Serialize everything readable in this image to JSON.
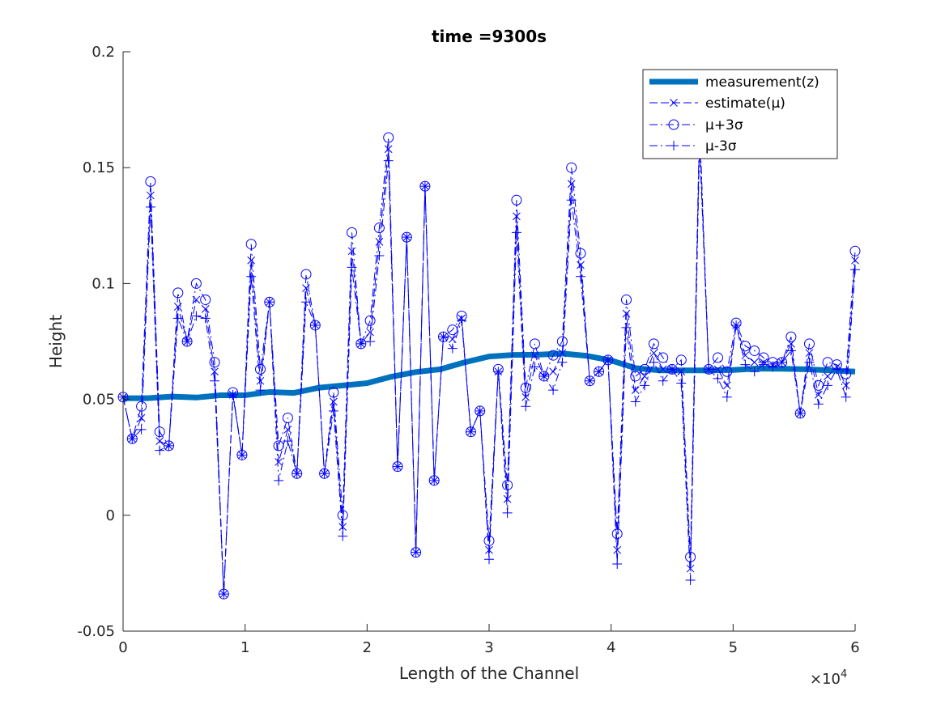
{
  "chart_data": {
    "type": "line",
    "title": "time =9300s",
    "xlabel": "Length of the Channel",
    "ylabel": "Height",
    "x_exponent_label": "×10",
    "x_exponent_power": "4",
    "xlim": [
      0,
      60000
    ],
    "ylim": [
      -0.05,
      0.2
    ],
    "xticks": [
      0,
      10000,
      20000,
      30000,
      40000,
      50000,
      60000
    ],
    "xtick_labels": [
      "0",
      "1",
      "2",
      "3",
      "4",
      "5",
      "6"
    ],
    "yticks": [
      -0.05,
      0,
      0.05,
      0.1,
      0.15,
      0.2
    ],
    "ytick_labels": [
      "-0.05",
      "0",
      "0.05",
      "0.1",
      "0.15",
      "0.2"
    ],
    "grid": false,
    "legend_position": "top-right",
    "legend": [
      "measurement(z)",
      "estimate(μ)",
      "μ+3σ",
      "μ-3σ"
    ],
    "colors": {
      "measurement": "#0072BD",
      "estimate": "#0000FF",
      "axis": "#262626"
    },
    "measurement": {
      "name": "measurement(z)",
      "x": [
        0,
        2000,
        4000,
        6000,
        8000,
        10000,
        12000,
        14000,
        16000,
        18000,
        20000,
        22000,
        24000,
        26000,
        28000,
        30000,
        32000,
        34000,
        36000,
        38000,
        40000,
        42000,
        44000,
        46000,
        48000,
        50000,
        52000,
        54000,
        56000,
        58000,
        60000
      ],
      "y": [
        0.0505,
        0.0505,
        0.0512,
        0.0508,
        0.0518,
        0.0518,
        0.0532,
        0.0528,
        0.055,
        0.056,
        0.057,
        0.0598,
        0.0618,
        0.063,
        0.066,
        0.0685,
        0.0692,
        0.0693,
        0.0698,
        0.0688,
        0.0668,
        0.0635,
        0.0625,
        0.0625,
        0.0625,
        0.0627,
        0.0633,
        0.0632,
        0.063,
        0.0625,
        0.062
      ]
    },
    "estimate": {
      "name": "estimate(μ)",
      "x": [
        0,
        750,
        1500,
        2250,
        3000,
        3750,
        4500,
        5250,
        6000,
        6750,
        7500,
        8250,
        9000,
        9750,
        10500,
        11250,
        12000,
        12750,
        13500,
        14250,
        15000,
        15750,
        16500,
        17250,
        18000,
        18750,
        19500,
        20250,
        21000,
        21750,
        22500,
        23250,
        24000,
        24750,
        25500,
        26250,
        27000,
        27750,
        28500,
        29250,
        30000,
        30750,
        31500,
        32250,
        33000,
        33750,
        34500,
        35250,
        36000,
        36750,
        37500,
        38250,
        39000,
        39750,
        40500,
        41250,
        42000,
        42750,
        43500,
        44250,
        45000,
        45750,
        46500,
        47250,
        48000,
        48750,
        49500,
        50250,
        51000,
        51750,
        52500,
        53250,
        54000,
        54750,
        55500,
        56250,
        57000,
        57750,
        58500,
        59250,
        60000
      ],
      "y": [
        0.051,
        0.033,
        0.042,
        0.138,
        0.032,
        0.03,
        0.09,
        0.075,
        0.093,
        0.089,
        0.062,
        -0.034,
        0.052,
        0.026,
        0.11,
        0.058,
        0.092,
        0.023,
        0.037,
        0.018,
        0.098,
        0.082,
        0.018,
        0.049,
        -0.005,
        0.114,
        0.074,
        0.079,
        0.118,
        0.158,
        0.021,
        0.12,
        -0.016,
        0.142,
        0.015,
        0.077,
        0.076,
        0.085,
        0.036,
        0.045,
        -0.015,
        0.062,
        0.007,
        0.129,
        0.051,
        0.069,
        0.06,
        0.062,
        0.07,
        0.143,
        0.108,
        0.058,
        0.062,
        0.067,
        -0.015,
        0.087,
        0.054,
        0.06,
        0.07,
        0.063,
        0.063,
        0.062,
        -0.023,
        0.165,
        0.063,
        0.063,
        0.056,
        0.082,
        0.069,
        0.066,
        0.066,
        0.065,
        0.066,
        0.074,
        0.044,
        0.07,
        0.052,
        0.06,
        0.064,
        0.056,
        0.11
      ]
    },
    "upper": {
      "name": "μ+3σ",
      "y": [
        0.051,
        0.033,
        0.047,
        0.144,
        0.036,
        0.03,
        0.096,
        0.075,
        0.1,
        0.093,
        0.066,
        -0.034,
        0.053,
        0.026,
        0.117,
        0.063,
        0.092,
        0.03,
        0.042,
        0.018,
        0.104,
        0.082,
        0.018,
        0.053,
        0.0,
        0.122,
        0.074,
        0.084,
        0.124,
        0.163,
        0.021,
        0.12,
        -0.016,
        0.142,
        0.015,
        0.077,
        0.08,
        0.086,
        0.036,
        0.045,
        -0.011,
        0.063,
        0.013,
        0.136,
        0.055,
        0.074,
        0.06,
        0.069,
        0.075,
        0.15,
        0.113,
        0.058,
        0.062,
        0.067,
        -0.008,
        0.093,
        0.06,
        0.063,
        0.074,
        0.068,
        0.063,
        0.067,
        -0.018,
        0.17,
        0.063,
        0.068,
        0.062,
        0.083,
        0.073,
        0.071,
        0.068,
        0.066,
        0.066,
        0.077,
        0.044,
        0.074,
        0.056,
        0.066,
        0.065,
        0.061,
        0.114
      ]
    },
    "lower": {
      "name": "μ-3σ",
      "y": [
        0.051,
        0.033,
        0.037,
        0.133,
        0.028,
        0.03,
        0.085,
        0.075,
        0.086,
        0.085,
        0.058,
        -0.034,
        0.052,
        0.026,
        0.103,
        0.054,
        0.092,
        0.015,
        0.032,
        0.018,
        0.092,
        0.082,
        0.018,
        0.045,
        -0.009,
        0.107,
        0.074,
        0.075,
        0.112,
        0.153,
        0.021,
        0.12,
        -0.016,
        0.142,
        0.015,
        0.077,
        0.072,
        0.084,
        0.036,
        0.045,
        -0.019,
        0.062,
        0.001,
        0.122,
        0.047,
        0.064,
        0.06,
        0.054,
        0.066,
        0.136,
        0.103,
        0.058,
        0.062,
        0.067,
        -0.021,
        0.081,
        0.049,
        0.056,
        0.066,
        0.058,
        0.063,
        0.057,
        -0.028,
        0.16,
        0.063,
        0.059,
        0.051,
        0.082,
        0.065,
        0.062,
        0.065,
        0.064,
        0.066,
        0.071,
        0.044,
        0.066,
        0.048,
        0.056,
        0.063,
        0.051,
        0.106
      ]
    }
  }
}
